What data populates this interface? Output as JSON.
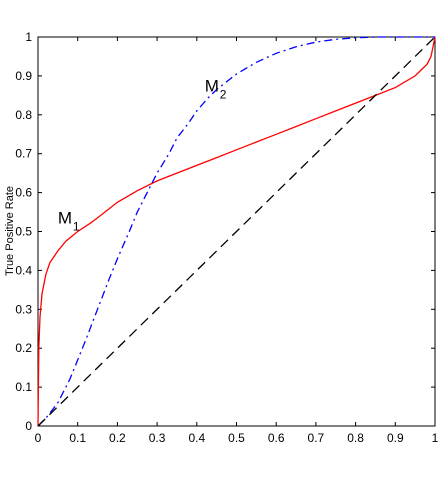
{
  "chart_data": {
    "type": "line",
    "title": "",
    "xlabel": "",
    "ylabel": "True Positive Rate",
    "xlim": [
      0,
      1
    ],
    "ylim": [
      0,
      1
    ],
    "x_ticks": [
      "0",
      "0.1",
      "0.2",
      "0.3",
      "0.4",
      "0.5",
      "0.6",
      "0.7",
      "0.8",
      "0.9",
      "1"
    ],
    "y_ticks": [
      "0",
      "0.1",
      "0.2",
      "0.3",
      "0.4",
      "0.5",
      "0.6",
      "0.7",
      "0.8",
      "0.9",
      "1"
    ],
    "grid": false,
    "series": [
      {
        "label_main": "M",
        "label_sub": "1",
        "color": "#ff0000",
        "dash": "solid",
        "x": [
          0,
          0.002,
          0.005,
          0.01,
          0.02,
          0.03,
          0.05,
          0.07,
          0.1,
          0.13,
          0.15,
          0.2,
          0.25,
          0.3,
          0.35,
          0.4,
          0.45,
          0.5,
          0.55,
          0.6,
          0.65,
          0.7,
          0.75,
          0.8,
          0.85,
          0.9,
          0.95,
          0.98,
          0.99,
          1.0
        ],
        "y": [
          0,
          0.2,
          0.28,
          0.34,
          0.39,
          0.42,
          0.45,
          0.475,
          0.5,
          0.52,
          0.535,
          0.575,
          0.605,
          0.63,
          0.65,
          0.67,
          0.69,
          0.71,
          0.73,
          0.75,
          0.77,
          0.79,
          0.81,
          0.83,
          0.85,
          0.87,
          0.9,
          0.93,
          0.95,
          1.0
        ]
      },
      {
        "label_main": "M",
        "label_sub": "2",
        "color": "#0000ff",
        "dash": "dashdot",
        "x": [
          0,
          0.02,
          0.05,
          0.08,
          0.1,
          0.12,
          0.15,
          0.18,
          0.2,
          0.23,
          0.25,
          0.28,
          0.3,
          0.33,
          0.35,
          0.38,
          0.4,
          0.43,
          0.45,
          0.5,
          0.55,
          0.6,
          0.65,
          0.7,
          0.75,
          0.8,
          0.85,
          0.9,
          0.95,
          1.0
        ],
        "y": [
          0,
          0.02,
          0.06,
          0.12,
          0.17,
          0.22,
          0.3,
          0.38,
          0.43,
          0.5,
          0.55,
          0.61,
          0.65,
          0.7,
          0.74,
          0.78,
          0.81,
          0.845,
          0.865,
          0.905,
          0.935,
          0.958,
          0.975,
          0.987,
          0.994,
          0.998,
          1.0,
          1.0,
          1.0,
          1.0
        ]
      },
      {
        "label_main": "",
        "label_sub": "",
        "color": "#000000",
        "dash": "dashed",
        "x": [
          0,
          1
        ],
        "y": [
          0,
          1
        ]
      }
    ]
  }
}
